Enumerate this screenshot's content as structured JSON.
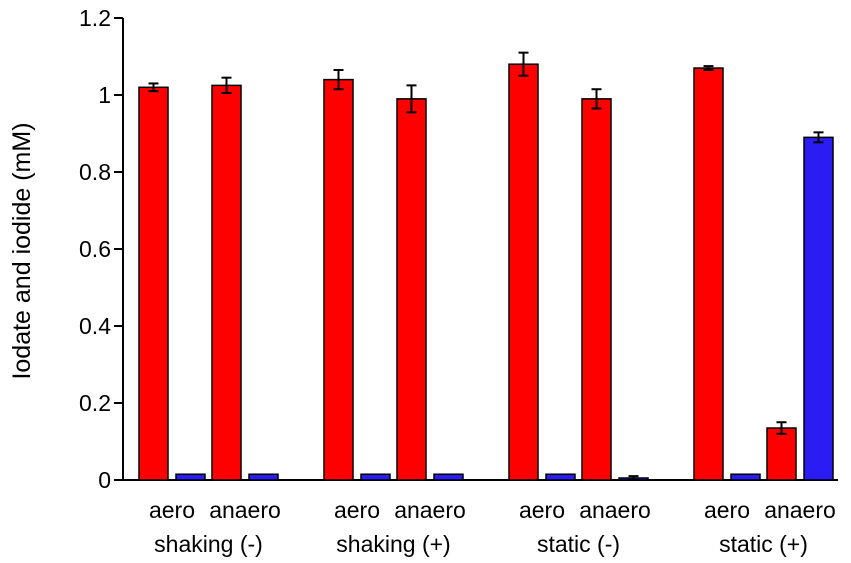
{
  "chart_data": {
    "type": "bar",
    "title": "",
    "xlabel": "",
    "ylabel": "Iodate and iodide (mM)",
    "ylim": [
      0,
      1.2
    ],
    "yticks": [
      "0",
      "0.2",
      "0.4",
      "0.6",
      "0.8",
      "1",
      "1.2"
    ],
    "ytick_values": [
      0,
      0.2,
      0.4,
      0.6,
      0.8,
      1.0,
      1.2
    ],
    "grid": false,
    "legend": "none",
    "groups": [
      {
        "label": "shaking (-)",
        "subgroups": [
          {
            "label": "aero",
            "bars": [
              {
                "series": "iodate",
                "value": 1.02,
                "error": 0.01
              },
              {
                "series": "iodide",
                "value": 0.015,
                "error": 0
              }
            ]
          },
          {
            "label": "anaero",
            "bars": [
              {
                "series": "iodate",
                "value": 1.025,
                "error": 0.02
              },
              {
                "series": "iodide",
                "value": 0.015,
                "error": 0
              }
            ]
          }
        ]
      },
      {
        "label": "shaking (+)",
        "subgroups": [
          {
            "label": "aero",
            "bars": [
              {
                "series": "iodate",
                "value": 1.04,
                "error": 0.025
              },
              {
                "series": "iodide",
                "value": 0.015,
                "error": 0
              }
            ]
          },
          {
            "label": "anaero",
            "bars": [
              {
                "series": "iodate",
                "value": 0.99,
                "error": 0.035
              },
              {
                "series": "iodide",
                "value": 0.015,
                "error": 0
              }
            ]
          }
        ]
      },
      {
        "label": "static (-)",
        "subgroups": [
          {
            "label": "aero",
            "bars": [
              {
                "series": "iodate",
                "value": 1.08,
                "error": 0.03
              },
              {
                "series": "iodide",
                "value": 0.015,
                "error": 0
              }
            ]
          },
          {
            "label": "anaero",
            "bars": [
              {
                "series": "iodate",
                "value": 0.99,
                "error": 0.025
              },
              {
                "series": "iodide",
                "value": 0.005,
                "error": 0.005
              }
            ]
          }
        ]
      },
      {
        "label": "static (+)",
        "subgroups": [
          {
            "label": "aero",
            "bars": [
              {
                "series": "iodate",
                "value": 1.07,
                "error": 0.005
              },
              {
                "series": "iodide",
                "value": 0.015,
                "error": 0
              }
            ]
          },
          {
            "label": "anaero",
            "bars": [
              {
                "series": "iodate",
                "value": 0.135,
                "error": 0.015
              },
              {
                "series": "iodide",
                "value": 0.89,
                "error": 0.013
              }
            ]
          }
        ]
      }
    ],
    "colors": {
      "iodate": "#ff0000",
      "iodide": "#2a1cf2"
    }
  }
}
